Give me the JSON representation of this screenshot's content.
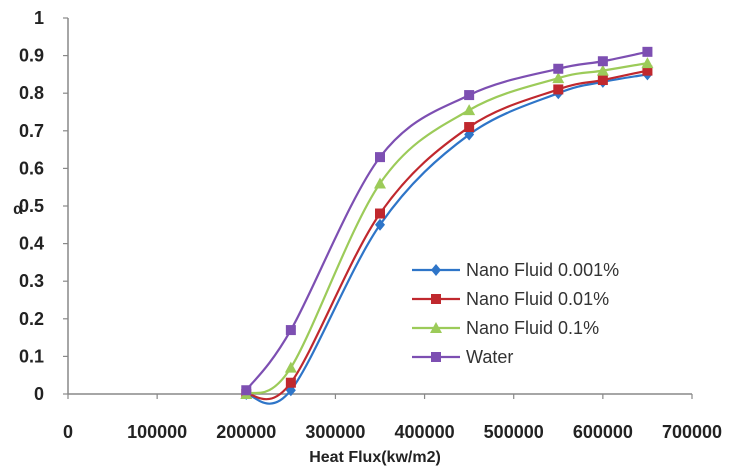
{
  "chart_data": {
    "type": "line",
    "title": "",
    "xlabel": "Heat Flux(kw/m2)",
    "ylabel": "α",
    "xlim": [
      0,
      700000
    ],
    "ylim": [
      0,
      1
    ],
    "x_ticks": [
      "0",
      "100000",
      "200000",
      "300000",
      "400000",
      "500000",
      "600000",
      "700000"
    ],
    "y_ticks": [
      "0",
      "0.1",
      "0.2",
      "0.3",
      "0.4",
      "0.5",
      "0.6",
      "0.7",
      "0.8",
      "0.9",
      "1"
    ],
    "grid": false,
    "legend_position": "bottom-right",
    "x": [
      200000,
      250000,
      350000,
      450000,
      550000,
      600000,
      650000
    ],
    "series": [
      {
        "name": "Nano Fluid 0.001%",
        "color": "#2E75C8",
        "marker": "diamond",
        "values": [
          0.0,
          0.01,
          0.45,
          0.69,
          0.8,
          0.83,
          0.85
        ]
      },
      {
        "name": "Nano Fluid 0.01%",
        "color": "#C0282E",
        "marker": "square",
        "values": [
          0.0,
          0.03,
          0.48,
          0.71,
          0.81,
          0.835,
          0.86
        ]
      },
      {
        "name": "Nano Fluid 0.1%",
        "color": "#9CCB59",
        "marker": "triangle",
        "values": [
          0.0,
          0.07,
          0.56,
          0.755,
          0.84,
          0.86,
          0.88
        ]
      },
      {
        "name": "Water",
        "color": "#7D4FB2",
        "marker": "square",
        "values": [
          0.01,
          0.17,
          0.63,
          0.795,
          0.865,
          0.885,
          0.91
        ]
      }
    ]
  }
}
